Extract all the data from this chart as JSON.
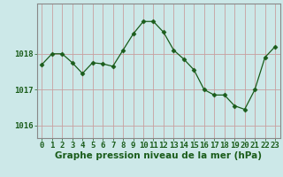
{
  "x": [
    0,
    1,
    2,
    3,
    4,
    5,
    6,
    7,
    8,
    9,
    10,
    11,
    12,
    13,
    14,
    15,
    16,
    17,
    18,
    19,
    20,
    21,
    22,
    23
  ],
  "y": [
    1017.7,
    1018.0,
    1018.0,
    1017.75,
    1017.45,
    1017.75,
    1017.72,
    1017.65,
    1018.1,
    1018.55,
    1018.9,
    1018.9,
    1018.6,
    1018.1,
    1017.85,
    1017.55,
    1017.0,
    1016.85,
    1016.85,
    1016.55,
    1016.45,
    1017.0,
    1017.9,
    1018.2
  ],
  "line_color": "#1a5c1a",
  "marker": "D",
  "marker_size": 2.5,
  "background_color": "#cce8e8",
  "plot_bg_color": "#cce8e8",
  "grid_color": "#c8a0a0",
  "xlabel": "Graphe pression niveau de la mer (hPa)",
  "xlabel_color": "#1a5c1a",
  "xlabel_fontsize": 7.5,
  "xtick_color": "#1a5c1a",
  "ytick_color": "#1a5c1a",
  "tick_fontsize": 6.5,
  "ylim": [
    1015.65,
    1019.4
  ],
  "yticks": [
    1016,
    1017,
    1018
  ],
  "xlim": [
    -0.5,
    23.5
  ],
  "xticks": [
    0,
    1,
    2,
    3,
    4,
    5,
    6,
    7,
    8,
    9,
    10,
    11,
    12,
    13,
    14,
    15,
    16,
    17,
    18,
    19,
    20,
    21,
    22,
    23
  ],
  "border_color": "#888888"
}
